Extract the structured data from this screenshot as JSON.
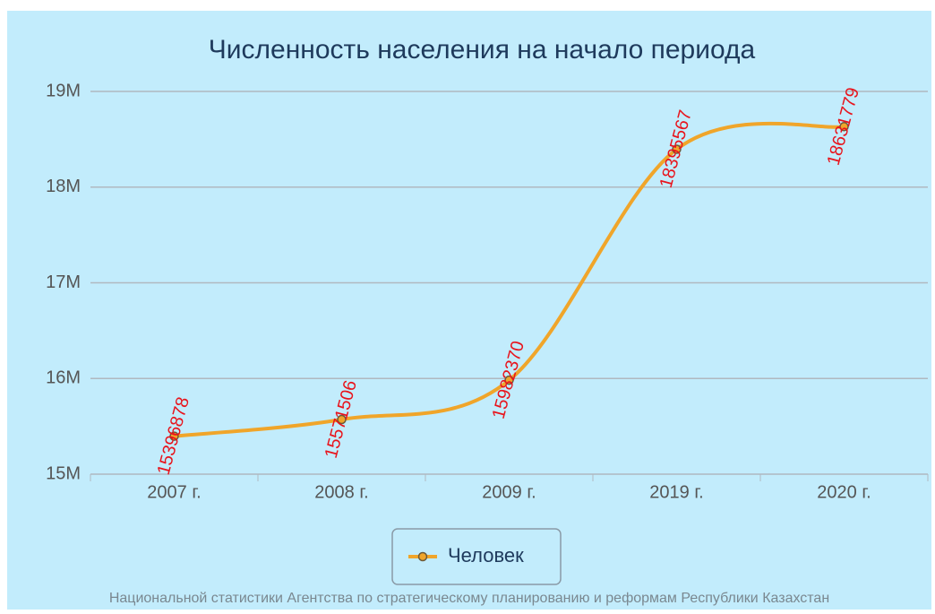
{
  "chart_data": {
    "type": "line",
    "title": "Численность населения на начало периода",
    "categories": [
      "2007 г.",
      "2008 г.",
      "2009 г.",
      "2019 г.",
      "2020 г."
    ],
    "series": [
      {
        "name": "Человек",
        "color": "#f0a52a",
        "values": [
          15396878,
          15571506,
          15982370,
          18395567,
          18631779
        ]
      }
    ],
    "ylim": [
      15000000,
      19000000
    ],
    "yticks": [
      {
        "value": 15000000,
        "label": "15M"
      },
      {
        "value": 16000000,
        "label": "16M"
      },
      {
        "value": 17000000,
        "label": "17M"
      },
      {
        "value": 18000000,
        "label": "18M"
      },
      {
        "value": 19000000,
        "label": "19M"
      }
    ],
    "grid": true,
    "legend": "bottom"
  },
  "footer": "Национальной статистики Агентства по стратегическому планированию и реформам Республики Казахстан"
}
